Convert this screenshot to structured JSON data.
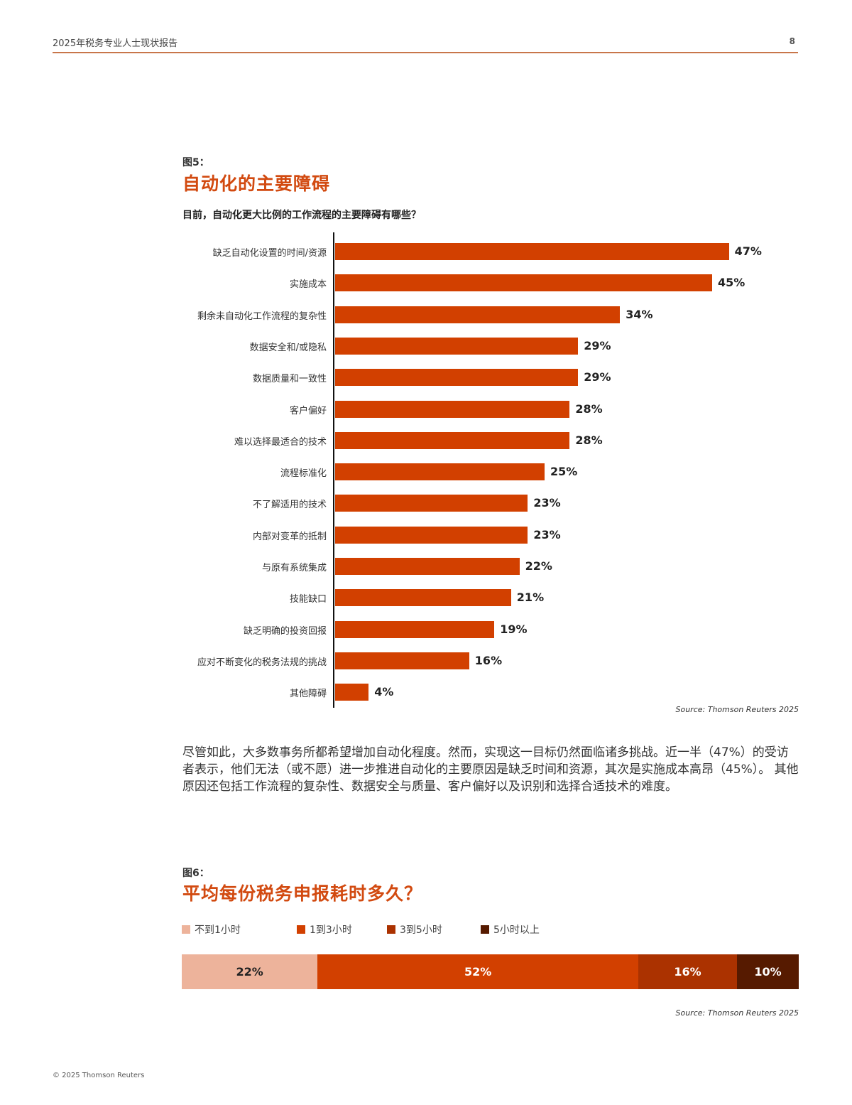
{
  "header": {
    "title": "2025年税务专业人士现状报告",
    "page_number": "8",
    "rule_color": "#c8764a"
  },
  "figure5": {
    "label": "图5：",
    "title": "自动化的主要障碍",
    "question": "目前，自动化更大比例的工作流程的主要障碍有哪些？",
    "source": "Source: Thomson Reuters 2025",
    "bar_color": "#d24000",
    "bars": [
      {
        "label": "缺乏自动化设置的时间/资源",
        "value": 47,
        "display": "47%"
      },
      {
        "label": "实施成本",
        "value": 45,
        "display": "45%"
      },
      {
        "label": "剩余未自动化工作流程的复杂性",
        "value": 34,
        "display": "34%"
      },
      {
        "label": "数据安全和/或隐私",
        "value": 29,
        "display": "29%"
      },
      {
        "label": "数据质量和一致性",
        "value": 29,
        "display": "29%"
      },
      {
        "label": "客户偏好",
        "value": 28,
        "display": "28%"
      },
      {
        "label": "难以选择最适合的技术",
        "value": 28,
        "display": "28%"
      },
      {
        "label": "流程标准化",
        "value": 25,
        "display": "25%"
      },
      {
        "label": "不了解适用的技术",
        "value": 23,
        "display": "23%"
      },
      {
        "label": "内部对变革的抵制",
        "value": 23,
        "display": "23%"
      },
      {
        "label": "与原有系统集成",
        "value": 22,
        "display": "22%"
      },
      {
        "label": "技能缺口",
        "value": 21,
        "display": "21%"
      },
      {
        "label": "缺乏明确的投资回报",
        "value": 19,
        "display": "19%"
      },
      {
        "label": "应对不断变化的税务法规的挑战",
        "value": 16,
        "display": "16%"
      },
      {
        "label": "其他障碍",
        "value": 4,
        "display": "4%"
      }
    ]
  },
  "body": {
    "paragraph": "尽管如此，大多数事务所都希望增加自动化程度。然而，实现这一目标仍然面临诸多挑战。近一半（47%）的受访者表示，他们无法（或不愿）进一步推进自动化的主要原因是缺乏时间和资源，其次是实施成本高昂（45%）。 其他原因还包括工作流程的复杂性、数据安全与质量、客户偏好以及识别和选择合适技术的难度。"
  },
  "figure6": {
    "label": "图6：",
    "title": "平均每份税务申报耗时多久？",
    "source": "Source: Thomson Reuters 2025",
    "segments": [
      {
        "legend": "不到1小时",
        "value": 22,
        "display": "22%",
        "color": "#edb39b",
        "text_color": "#222222"
      },
      {
        "legend": "1到3小时",
        "value": 52,
        "display": "52%",
        "color": "#d24000",
        "text_color": "#ffffff"
      },
      {
        "legend": "3到5小时",
        "value": 16,
        "display": "16%",
        "color": "#ab3200",
        "text_color": "#ffffff"
      },
      {
        "legend": "5小时以上",
        "value": 10,
        "display": "10%",
        "color": "#561a00",
        "text_color": "#ffffff"
      }
    ]
  },
  "footer": {
    "copyright": "© 2025 Thomson Reuters"
  },
  "chart_data": [
    {
      "type": "bar",
      "orientation": "horizontal",
      "title": "自动化的主要障碍",
      "subtitle": "目前，自动化更大比例的工作流程的主要障碍有哪些？",
      "categories": [
        "缺乏自动化设置的时间/资源",
        "实施成本",
        "剩余未自动化工作流程的复杂性",
        "数据安全和/或隐私",
        "数据质量和一致性",
        "客户偏好",
        "难以选择最适合的技术",
        "流程标准化",
        "不了解适用的技术",
        "内部对变革的抵制",
        "与原有系统集成",
        "技能缺口",
        "缺乏明确的投资回报",
        "应对不断变化的税务法规的挑战",
        "其他障碍"
      ],
      "values": [
        47,
        45,
        34,
        29,
        29,
        28,
        28,
        25,
        23,
        23,
        22,
        21,
        19,
        16,
        4
      ],
      "unit": "%",
      "xlabel": "",
      "ylabel": "",
      "grid": false,
      "legend": null,
      "annotation": "Source: Thomson Reuters 2025"
    },
    {
      "type": "bar",
      "orientation": "horizontal",
      "stacked": true,
      "title": "平均每份税务申报耗时多久？",
      "series": [
        {
          "name": "不到1小时",
          "values": [
            22
          ]
        },
        {
          "name": "1到3小时",
          "values": [
            52
          ]
        },
        {
          "name": "3到5小时",
          "values": [
            16
          ]
        },
        {
          "name": "5小时以上",
          "values": [
            10
          ]
        }
      ],
      "unit": "%",
      "legend_position": "top",
      "grid": false,
      "annotation": "Source: Thomson Reuters 2025"
    }
  ]
}
